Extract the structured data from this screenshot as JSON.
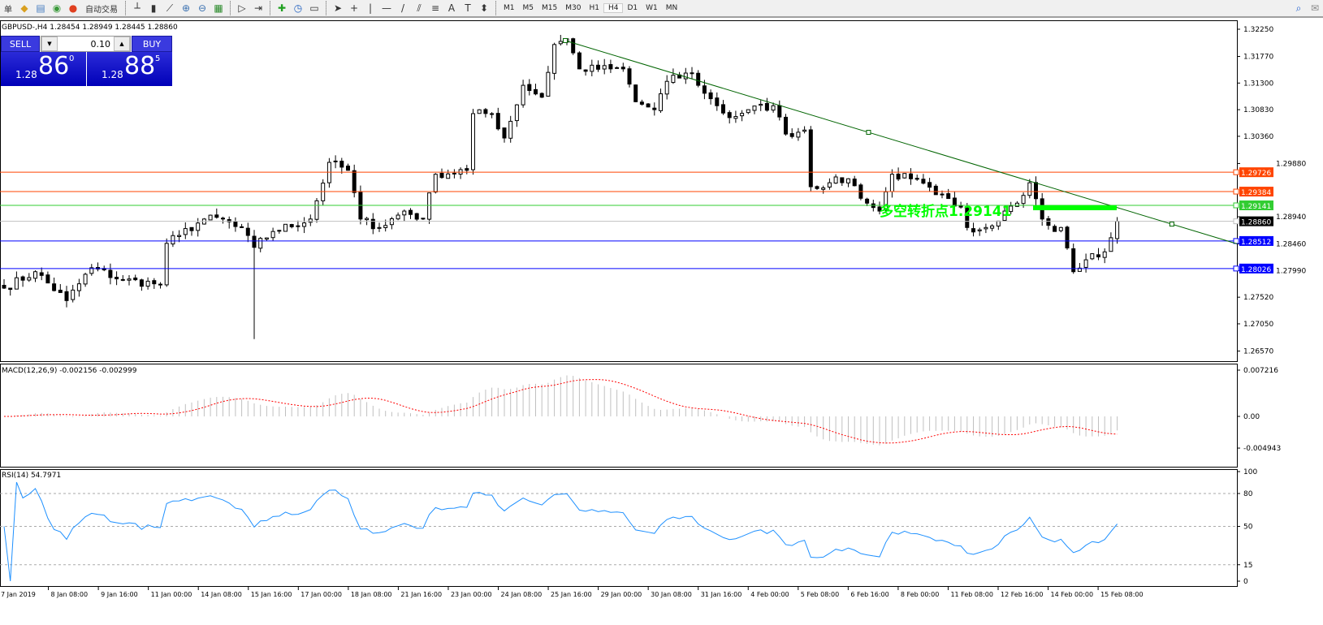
{
  "toolbar": {
    "left_cut_label": "单",
    "auto_trade_label": "自动交易",
    "timeframes": [
      "M1",
      "M5",
      "M15",
      "M30",
      "H1",
      "H4",
      "D1",
      "W1",
      "MN"
    ],
    "active_timeframe": "H4",
    "icons": [
      "expert-icon",
      "market-watch-icon",
      "signals-icon",
      "autotrading-icon",
      "bar-chart-icon",
      "candlestick-icon",
      "line-chart-icon",
      "zoom-in-icon",
      "zoom-out-icon",
      "tile-windows-icon",
      "autoscroll-icon",
      "chart-shift-icon",
      "indicators-icon",
      "periods-icon",
      "templates-icon",
      "cursor-icon",
      "crosshair-icon",
      "vertical-line-icon",
      "horizontal-line-icon",
      "trendline-icon",
      "equidistant-channel-icon",
      "fibonacci-icon",
      "text-icon",
      "text-label-icon",
      "arrows-icon",
      "search-icon",
      "chat-icon"
    ]
  },
  "chart": {
    "title": "GBPUSD-,H4  1.28454 1.28949 1.28445 1.28860",
    "trade_panel": {
      "sell_label": "SELL",
      "buy_label": "BUY",
      "lot": "0.10",
      "sell_prefix": "1.28",
      "sell_big": "86",
      "sell_sup": "0",
      "buy_prefix": "1.28",
      "buy_big": "88",
      "buy_sup": "5"
    },
    "annotation": "多空转折点1.29141",
    "colors": {
      "bull": "#ffffff",
      "bear": "#000000",
      "trend": "#006400",
      "macd_hist": "#c0c0c0",
      "macd_signal": "#ff0000",
      "rsi": "#1e90ff",
      "annotation": "#00ff00"
    }
  },
  "chart_data": {
    "type": "candlestick",
    "symbol": "GBPUSD-",
    "timeframe": "H4",
    "price_ticks": [
      "1.32250",
      "1.31770",
      "1.31300",
      "1.30830",
      "1.30360",
      "1.29880",
      "1.28940",
      "1.28460",
      "1.27990",
      "1.27520",
      "1.27050",
      "1.26570"
    ],
    "ylim": [
      1.2657,
      1.3255
    ],
    "price_path": [
      [
        0,
        1.2768
      ],
      [
        5,
        1.2797
      ],
      [
        10,
        1.2746
      ],
      [
        14,
        1.2804
      ],
      [
        19,
        1.2782
      ],
      [
        25,
        1.2775
      ],
      [
        26,
        1.2847
      ],
      [
        28,
        1.2861
      ],
      [
        32,
        1.289
      ],
      [
        35,
        1.289
      ],
      [
        39,
        1.2861
      ],
      [
        40,
        1.284
      ],
      [
        43,
        1.2868
      ],
      [
        49,
        1.289
      ],
      [
        52,
        1.299
      ],
      [
        55,
        1.2976
      ],
      [
        57,
        1.289
      ],
      [
        60,
        1.2875
      ],
      [
        64,
        1.2904
      ],
      [
        67,
        1.289
      ],
      [
        69,
        1.2969
      ],
      [
        74,
        1.2976
      ],
      [
        75,
        1.3076
      ],
      [
        78,
        1.3076
      ],
      [
        80,
        1.3033
      ],
      [
        83,
        1.3126
      ],
      [
        86,
        1.3105
      ],
      [
        88,
        1.3198
      ],
      [
        90,
        1.3208
      ],
      [
        92,
        1.3155
      ],
      [
        97,
        1.3155
      ],
      [
        99,
        1.3155
      ],
      [
        101,
        1.3097
      ],
      [
        104,
        1.3083
      ],
      [
        106,
        1.3133
      ],
      [
        110,
        1.3148
      ],
      [
        112,
        1.3112
      ],
      [
        114,
        1.309
      ],
      [
        116,
        1.3069
      ],
      [
        119,
        1.3083
      ],
      [
        123,
        1.309
      ],
      [
        125,
        1.304
      ],
      [
        128,
        1.3047
      ],
      [
        129,
        1.2947
      ],
      [
        132,
        1.2954
      ],
      [
        135,
        1.2961
      ],
      [
        138,
        1.2918
      ],
      [
        140,
        1.2904
      ],
      [
        142,
        1.2969
      ],
      [
        145,
        1.2961
      ],
      [
        149,
        1.2933
      ],
      [
        153,
        1.2911
      ],
      [
        154,
        1.2875
      ],
      [
        157,
        1.2875
      ],
      [
        160,
        1.2904
      ],
      [
        162,
        1.2918
      ],
      [
        164,
        1.2954
      ],
      [
        166,
        1.289
      ],
      [
        168,
        1.2868
      ],
      [
        169,
        1.2875
      ],
      [
        171,
        1.2797
      ],
      [
        173,
        1.2818
      ],
      [
        176,
        1.2832
      ],
      [
        178,
        1.2886
      ]
    ],
    "horizontal_levels": [
      {
        "price": "1.29726",
        "color": "#ff4500"
      },
      {
        "price": "1.29384",
        "color": "#ff4500"
      },
      {
        "price": "1.29141",
        "color": "#32cd32"
      },
      {
        "price": "1.28860",
        "color": "#000000"
      },
      {
        "price": "1.28512",
        "color": "#0000ff"
      },
      {
        "price": "1.28026",
        "color": "#0000ff"
      }
    ],
    "trendline": {
      "from": [
        90,
        1.3205
      ],
      "to": [
        187,
        1.2881
      ]
    },
    "x_ticks": [
      "7 Jan 2019",
      "8 Jan 08:00",
      "9 Jan 16:00",
      "11 Jan 00:00",
      "14 Jan 08:00",
      "15 Jan 16:00",
      "17 Jan 00:00",
      "18 Jan 08:00",
      "21 Jan 16:00",
      "23 Jan 00:00",
      "24 Jan 08:00",
      "25 Jan 16:00",
      "29 Jan 00:00",
      "30 Jan 08:00",
      "31 Jan 16:00",
      "4 Feb 00:00",
      "5 Feb 08:00",
      "6 Feb 16:00",
      "8 Feb 00:00",
      "11 Feb 08:00",
      "12 Feb 16:00",
      "14 Feb 00:00",
      "15 Feb 08:00"
    ],
    "macd": {
      "label": "MACD(12,26,9) -0.002156 -0.002999",
      "ticks": [
        "0.007216",
        "0.00",
        "-0.004943"
      ],
      "ylim": [
        -0.004943,
        0.007216
      ]
    },
    "rsi": {
      "label": "RSI(14) 54.7971",
      "ticks": [
        "100",
        "80",
        "50",
        "15",
        "0"
      ],
      "levels": [
        80,
        50,
        15
      ]
    }
  }
}
